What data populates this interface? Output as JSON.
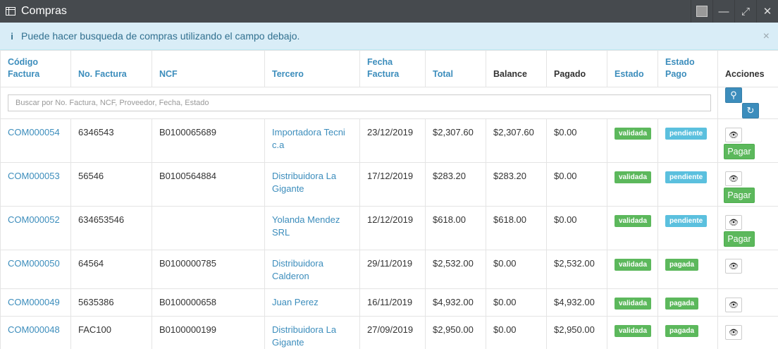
{
  "window": {
    "title": "Compras",
    "icon": "table-icon"
  },
  "alert": {
    "icon": "info-icon",
    "message": "Puede hacer busqueda de compras utilizando el campo debajo.",
    "close": "×"
  },
  "columns": {
    "codigo": "Código Factura",
    "no_factura": "No. Factura",
    "ncf": "NCF",
    "tercero": "Tercero",
    "fecha": "Fecha Factura",
    "total": "Total",
    "balance": "Balance",
    "pagado": "Pagado",
    "estado": "Estado",
    "estado_pago": "Estado Pago",
    "acciones": "Acciones"
  },
  "search": {
    "placeholder": "Buscar por No. Factura, NCF, Proveedor, Fecha, Estado"
  },
  "actions": {
    "pay_label": "Pagar"
  },
  "colors": {
    "link": "#3c8dbc",
    "validada": "#5cb85c",
    "pendiente": "#5bc0de",
    "pagada": "#5cb85c",
    "alert_bg": "#d9edf7",
    "titlebar": "#464a4e"
  },
  "rows": [
    {
      "codigo": "COM000054",
      "no_factura": "6346543",
      "ncf": "B0100065689",
      "tercero": [
        "Importadora Tecni",
        "c.a"
      ],
      "fecha": "23/12/2019",
      "total": "$2,307.60",
      "balance": "$2,307.60",
      "pagado": "$0.00",
      "estado": "validada",
      "estado_pago": "pendiente"
    },
    {
      "codigo": "COM000053",
      "no_factura": "56546",
      "ncf": "B0100564884",
      "tercero": [
        "Distribuidora La",
        "Gigante"
      ],
      "fecha": "17/12/2019",
      "total": "$283.20",
      "balance": "$283.20",
      "pagado": "$0.00",
      "estado": "validada",
      "estado_pago": "pendiente"
    },
    {
      "codigo": "COM000052",
      "no_factura": "634653546",
      "ncf": "",
      "tercero": [
        "Yolanda Mendez",
        "SRL"
      ],
      "fecha": "12/12/2019",
      "total": "$618.00",
      "balance": "$618.00",
      "pagado": "$0.00",
      "estado": "validada",
      "estado_pago": "pendiente"
    },
    {
      "codigo": "COM000050",
      "no_factura": "64564",
      "ncf": "B0100000785",
      "tercero": [
        "Distribuidora",
        "Calderon"
      ],
      "fecha": "29/11/2019",
      "total": "$2,532.00",
      "balance": "$0.00",
      "pagado": "$2,532.00",
      "estado": "validada",
      "estado_pago": "pagada"
    },
    {
      "codigo": "COM000049",
      "no_factura": "5635386",
      "ncf": "B0100000658",
      "tercero": [
        "Juan Perez"
      ],
      "fecha": "16/11/2019",
      "total": "$4,932.00",
      "balance": "$0.00",
      "pagado": "$4,932.00",
      "estado": "validada",
      "estado_pago": "pagada"
    },
    {
      "codigo": "COM000048",
      "no_factura": "FAC100",
      "ncf": "B0100000199",
      "tercero": [
        "Distribuidora La",
        "Gigante"
      ],
      "fecha": "27/09/2019",
      "total": "$2,950.00",
      "balance": "$0.00",
      "pagado": "$2,950.00",
      "estado": "validada",
      "estado_pago": "pagada"
    }
  ]
}
